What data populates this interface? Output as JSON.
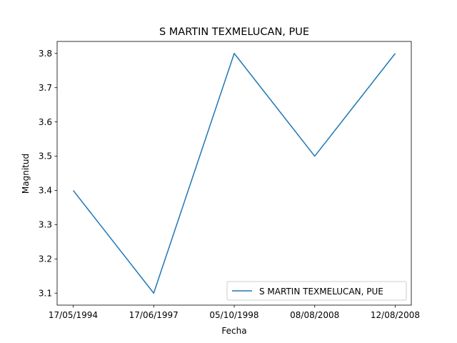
{
  "chart_data": {
    "type": "line",
    "title": "S MARTIN TEXMELUCAN, PUE",
    "xlabel": "Fecha",
    "ylabel": "Magnitud",
    "categories": [
      "17/05/1994",
      "17/06/1997",
      "05/10/1998",
      "08/08/2008",
      "12/08/2008"
    ],
    "series": [
      {
        "name": "S MARTIN TEXMELUCAN, PUE",
        "values": [
          3.4,
          3.1,
          3.8,
          3.5,
          3.8
        ],
        "color": "#1f77b4"
      }
    ],
    "ylim": [
      3.065,
      3.835
    ],
    "yticks": [
      "3.1",
      "3.2",
      "3.3",
      "3.4",
      "3.5",
      "3.6",
      "3.7",
      "3.8"
    ],
    "grid": false,
    "legend_position": "lower-right"
  }
}
